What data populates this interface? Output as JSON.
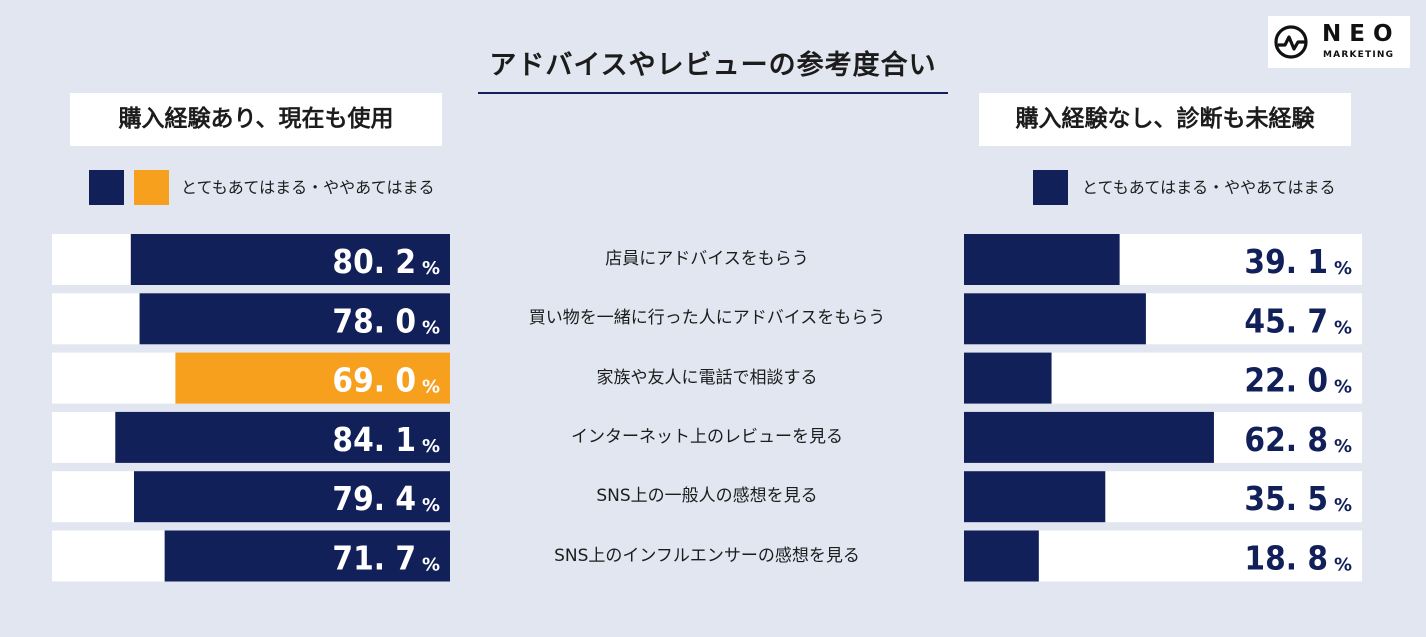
{
  "brand": {
    "logo_name": "NEO",
    "logo_sub": "MARKETING"
  },
  "colors": {
    "navy": "#12205a",
    "orange": "#f6a01e",
    "track": "#ffffff",
    "background": "#e1e6f0"
  },
  "chart_data": {
    "type": "bar",
    "title": "アドバイスやレビューの参考度合い",
    "unit": "%",
    "categories": [
      "店員にアドバイスをもらう",
      "買い物を一緒に行った人にアドバイスをもらう",
      "家族や友人に電話で相談する",
      "インターネット上のレビューを見る",
      "SNS上の一般人の感想を見る",
      "SNS上のインフルエンサーの感想を見る"
    ],
    "series": [
      {
        "name": "購入経験あり、現在も使用",
        "legend": "とてもあてはまる・ややあてはまる",
        "values": [
          80.2,
          78.0,
          69.0,
          84.1,
          79.4,
          71.7
        ],
        "direction": "right-to-left",
        "highlight_index": 2
      },
      {
        "name": "購入経験なし、診断も未経験",
        "legend": "とてもあてはまる・ややあてはまる",
        "values": [
          39.1,
          45.7,
          22.0,
          62.8,
          35.5,
          18.8
        ],
        "direction": "left-to-right"
      }
    ],
    "value_labels_left": [
      "80. 2",
      "78. 0",
      "69. 0",
      "84. 1",
      "79. 4",
      "71. 7"
    ],
    "value_labels_right": [
      "39. 1",
      "45. 7",
      "22. 0",
      "62. 8",
      "35. 5",
      "18. 8"
    ],
    "ylim": [
      0,
      100
    ]
  }
}
